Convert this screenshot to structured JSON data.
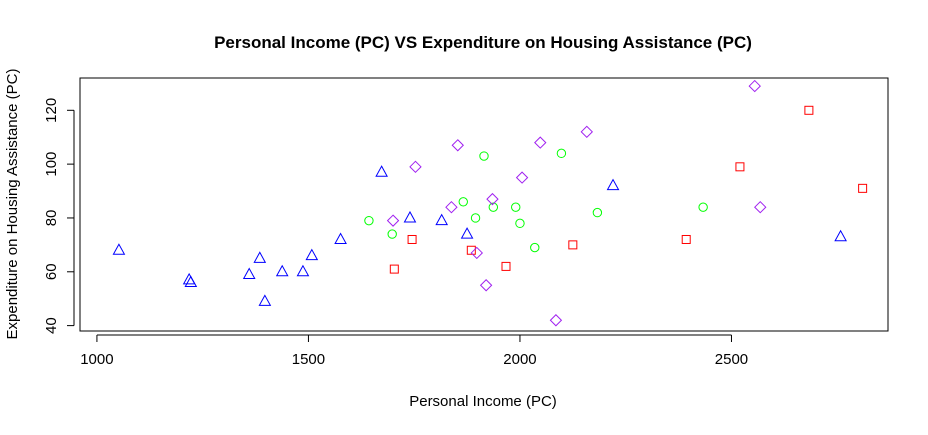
{
  "chart_data": {
    "type": "scatter",
    "title": "Personal Income (PC) VS Expenditure on Housing Assistance (PC)",
    "xlabel": "Personal Income (PC)",
    "ylabel": "Expenditure on Housing Assistance (PC)",
    "xlim": [
      960,
      2870
    ],
    "ylim": [
      38,
      132
    ],
    "x_ticks": [
      1000,
      1500,
      2000,
      2500
    ],
    "y_ticks": [
      40,
      60,
      80,
      100,
      120
    ],
    "grid": false,
    "legend": "none",
    "series": [
      {
        "marker": "triangle",
        "color": "#0000ff",
        "points": [
          [
            1052,
            68
          ],
          [
            1218,
            57
          ],
          [
            1222,
            56
          ],
          [
            1360,
            59
          ],
          [
            1385,
            65
          ],
          [
            1397,
            49
          ],
          [
            1438,
            60
          ],
          [
            1487,
            60
          ],
          [
            1508,
            66
          ],
          [
            1576,
            72
          ],
          [
            1673,
            97
          ],
          [
            1740,
            80
          ],
          [
            1815,
            79
          ],
          [
            1875,
            74
          ],
          [
            2220,
            92
          ],
          [
            2758,
            73
          ]
        ]
      },
      {
        "marker": "circle",
        "color": "#00ff00",
        "points": [
          [
            1643,
            79
          ],
          [
            1698,
            74
          ],
          [
            1866,
            86
          ],
          [
            1895,
            80
          ],
          [
            1915,
            103
          ],
          [
            1937,
            84
          ],
          [
            1990,
            84
          ],
          [
            2000,
            78
          ],
          [
            2035,
            69
          ],
          [
            2098,
            104
          ],
          [
            2183,
            82
          ],
          [
            2433,
            84
          ]
        ]
      },
      {
        "marker": "square",
        "color": "#ff0000",
        "points": [
          [
            1703,
            61
          ],
          [
            1745,
            72
          ],
          [
            1885,
            68
          ],
          [
            1967,
            62
          ],
          [
            2125,
            70
          ],
          [
            2393,
            72
          ],
          [
            2520,
            99
          ],
          [
            2683,
            120
          ],
          [
            2810,
            91
          ]
        ]
      },
      {
        "marker": "diamond",
        "color": "#a020f0",
        "points": [
          [
            1700,
            79
          ],
          [
            1753,
            99
          ],
          [
            1838,
            84
          ],
          [
            1853,
            107
          ],
          [
            1898,
            67
          ],
          [
            1920,
            55
          ],
          [
            1935,
            87
          ],
          [
            2005,
            95
          ],
          [
            2048,
            108
          ],
          [
            2085,
            42
          ],
          [
            2158,
            112
          ],
          [
            2555,
            129
          ],
          [
            2568,
            84
          ]
        ]
      }
    ]
  }
}
